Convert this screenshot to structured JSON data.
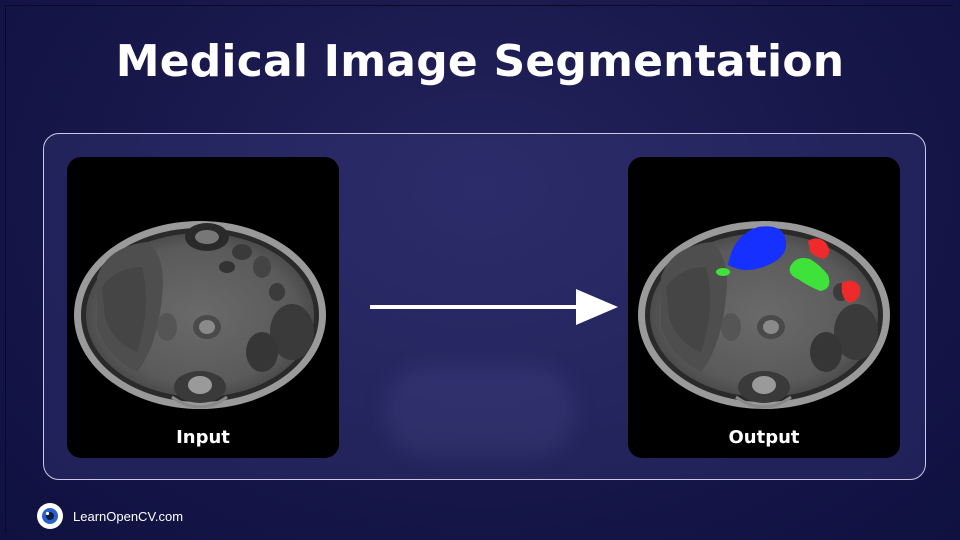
{
  "title": "Medical Image Segmentation",
  "input": {
    "label": "Input"
  },
  "output": {
    "label": "Output"
  },
  "brand": {
    "name": "LearnOpenCV.com",
    "icon": "eye-icon"
  },
  "segment_colors": {
    "blue": "#1530ff",
    "green": "#3fe23a",
    "red": "#ef2a2a"
  },
  "colors": {
    "background": "#17174a",
    "panel_border": "#c9c9e6",
    "text": "#ffffff"
  }
}
